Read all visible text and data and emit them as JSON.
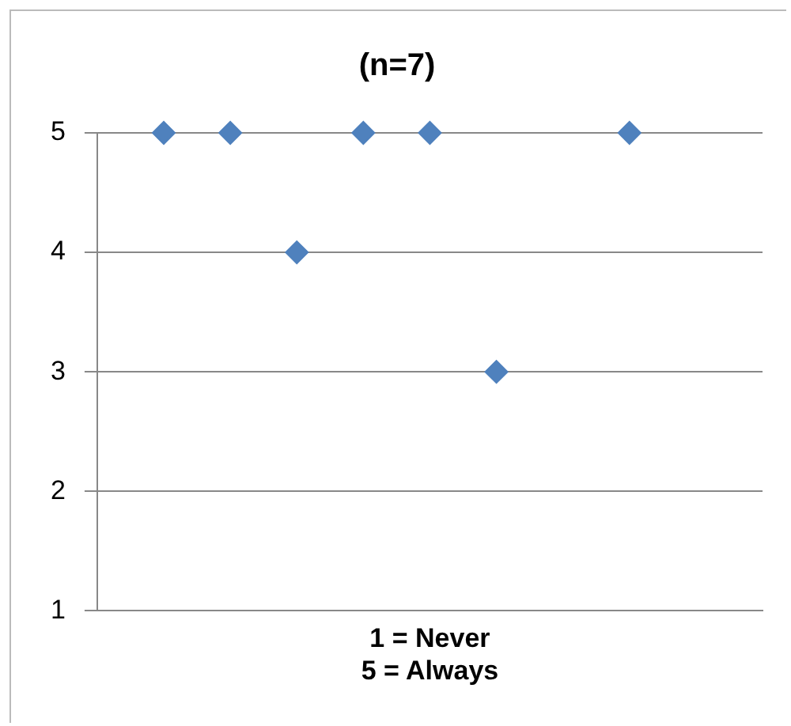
{
  "chart_data": {
    "type": "scatter",
    "title": "(n=7)",
    "xlabel": "1 = Never\n5 = Always",
    "categories": [
      null,
      null,
      null,
      null,
      null,
      null,
      null,
      null,
      null,
      null,
      null
    ],
    "series": [
      {
        "color": "#4f81bd",
        "values": [
          null,
          5,
          5,
          4,
          5,
          5,
          3,
          null,
          5,
          null,
          null
        ]
      }
    ],
    "ylim": [
      1,
      5
    ],
    "yticks": [
      1,
      2,
      3,
      4,
      5
    ],
    "grid": "y",
    "tick_labels": "y",
    "marker": "diamond",
    "legend": false
  }
}
